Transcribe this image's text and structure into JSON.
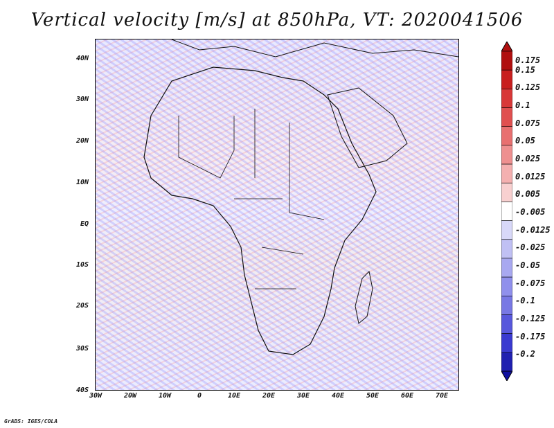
{
  "title": "Vertical velocity [m/s] at 850hPa, VT: 2020041506",
  "credit": "GrADS: IGES/COLA",
  "map": {
    "region": "Africa",
    "lat_labels": [
      "40N",
      "30N",
      "20N",
      "10N",
      "EQ",
      "10S",
      "20S",
      "30S",
      "40S"
    ],
    "lon_labels": [
      "30W",
      "20W",
      "10W",
      "0",
      "10E",
      "20E",
      "30E",
      "40E",
      "50E",
      "60E",
      "70E"
    ]
  },
  "colorbar": {
    "labels": [
      "0.175",
      "0.15",
      "0.125",
      "0.1",
      "0.075",
      "0.05",
      "0.025",
      "0.0125",
      "0.005",
      "-0.005",
      "-0.0125",
      "-0.025",
      "-0.05",
      "-0.075",
      "-0.1",
      "-0.125",
      "-0.175",
      "-0.2"
    ],
    "colors": [
      "#b01010",
      "#c82020",
      "#d83838",
      "#e05050",
      "#e87070",
      "#ee9090",
      "#f4b0b0",
      "#f8d0d0",
      "#ffffff",
      "#d8d8f8",
      "#c0c0f4",
      "#a8a8f0",
      "#9090ec",
      "#7878e4",
      "#5858dc",
      "#3a3ad0",
      "#2020b0"
    ]
  }
}
